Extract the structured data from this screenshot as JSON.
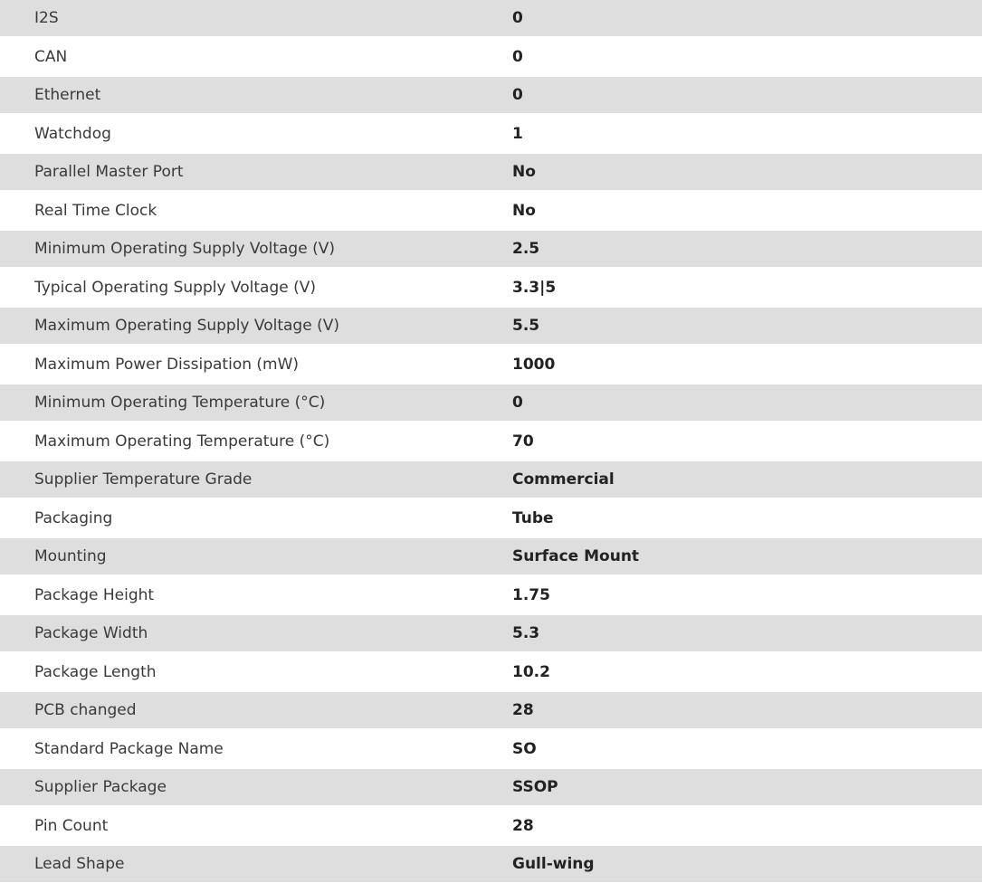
{
  "colors": {
    "stripe": "#dedede",
    "background": "#ffffff",
    "text": "#333333"
  },
  "rows": [
    {
      "label": "I2S",
      "value": "0"
    },
    {
      "label": "CAN",
      "value": "0"
    },
    {
      "label": "Ethernet",
      "value": "0"
    },
    {
      "label": "Watchdog",
      "value": "1"
    },
    {
      "label": "Parallel Master Port",
      "value": "No"
    },
    {
      "label": "Real Time Clock",
      "value": "No"
    },
    {
      "label": "Minimum Operating Supply Voltage (V)",
      "value": "2.5"
    },
    {
      "label": "Typical Operating Supply Voltage (V)",
      "value": "3.3|5"
    },
    {
      "label": "Maximum Operating Supply Voltage (V)",
      "value": "5.5"
    },
    {
      "label": "Maximum Power Dissipation (mW)",
      "value": "1000"
    },
    {
      "label": "Minimum Operating Temperature (°C)",
      "value": "0"
    },
    {
      "label": "Maximum Operating Temperature (°C)",
      "value": "70"
    },
    {
      "label": "Supplier Temperature Grade",
      "value": "Commercial"
    },
    {
      "label": "Packaging",
      "value": "Tube"
    },
    {
      "label": "Mounting",
      "value": "Surface Mount"
    },
    {
      "label": "Package Height",
      "value": "1.75"
    },
    {
      "label": "Package Width",
      "value": "5.3"
    },
    {
      "label": "Package Length",
      "value": "10.2"
    },
    {
      "label": "PCB changed",
      "value": "28"
    },
    {
      "label": "Standard Package Name",
      "value": "SO"
    },
    {
      "label": "Supplier Package",
      "value": "SSOP"
    },
    {
      "label": "Pin Count",
      "value": "28"
    },
    {
      "label": "Lead Shape",
      "value": "Gull-wing"
    }
  ]
}
